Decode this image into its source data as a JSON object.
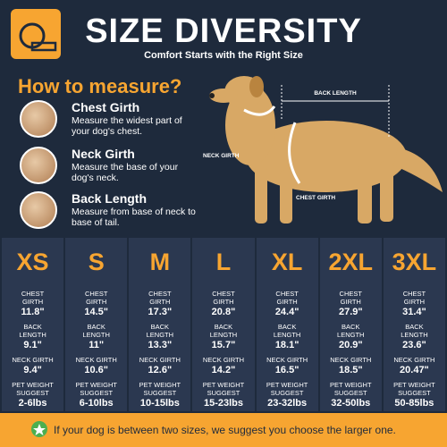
{
  "header": {
    "title": "SIZE DIVERSITY",
    "subtitle": "Comfort Starts with the Right Size"
  },
  "measure": {
    "heading": "How to measure?",
    "items": [
      {
        "title": "Chest Girth",
        "text": "Measure the widest part of your dog's chest."
      },
      {
        "title": "Neck Girth",
        "text": "Measure the base of your dog's neck."
      },
      {
        "title": "Back Length",
        "text": "Measure from base of neck to base of tail."
      }
    ]
  },
  "diagram": {
    "back_length": "BACK LENGTH",
    "neck_girth": "NECK GIRTH",
    "chest_girth": "CHEST GIRTH"
  },
  "sizes": [
    {
      "size": "XS",
      "chest_label": "CHEST GIRTH",
      "chest": "11.8\"",
      "back_label": "BACK LENGTH",
      "back": "9.1\"",
      "neck_label": "NECK GIRTH",
      "neck": "9.4\"",
      "weight_label": "PET WEIGHT SUGGEST",
      "weight": "2-6lbs"
    },
    {
      "size": "S",
      "chest_label": "CHEST GIRTH",
      "chest": "14.5\"",
      "back_label": "BACK LENGTH",
      "back": "11\"",
      "neck_label": "NECK GIRTH",
      "neck": "10.6\"",
      "weight_label": "PET WEIGHT SUGGEST",
      "weight": "6-10lbs"
    },
    {
      "size": "M",
      "chest_label": "CHEST GIRTH",
      "chest": "17.3\"",
      "back_label": "BACK LENGTH",
      "back": "13.3\"",
      "neck_label": "NECK GIRTH",
      "neck": "12.6\"",
      "weight_label": "PET WEIGHT SUGGEST",
      "weight": "10-15lbs"
    },
    {
      "size": "L",
      "chest_label": "CHEST GIRTH",
      "chest": "20.8\"",
      "back_label": "BACK LENGTH",
      "back": "15.7\"",
      "neck_label": "NECK GIRTH",
      "neck": "14.2\"",
      "weight_label": "PET WEIGHT SUGGEST",
      "weight": "15-23lbs"
    },
    {
      "size": "XL",
      "chest_label": "CHEST GIRTH",
      "chest": "24.4\"",
      "back_label": "BACK LENGTH",
      "back": "18.1\"",
      "neck_label": "NECK GIRTH",
      "neck": "16.5\"",
      "weight_label": "PET WEIGHT SUGGEST",
      "weight": "23-32lbs"
    },
    {
      "size": "2XL",
      "chest_label": "CHEST GIRTH",
      "chest": "27.9\"",
      "back_label": "BACK LENGTH",
      "back": "20.9\"",
      "neck_label": "NECK GIRTH",
      "neck": "18.5\"",
      "weight_label": "PET WEIGHT SUGGEST",
      "weight": "32-50lbs"
    },
    {
      "size": "3XL",
      "chest_label": "CHEST GIRTH",
      "chest": "31.4\"",
      "back_label": "BACK LENGTH",
      "back": "23.6\"",
      "neck_label": "NECK GIRTH",
      "neck": "20.47\"",
      "weight_label": "PET WEIGHT SUGGEST",
      "weight": "50-85lbs"
    }
  ],
  "footer": {
    "note": "If your dog is between two sizes, we suggest you choose the larger one."
  }
}
